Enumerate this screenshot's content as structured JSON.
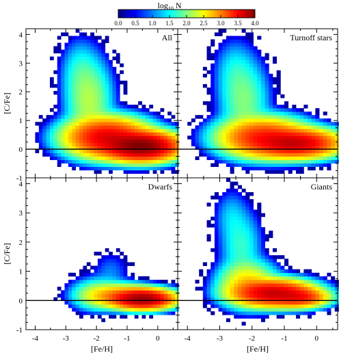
{
  "colorbar": {
    "label": "log",
    "label_sub": "10",
    "label_tail": " N",
    "ticks": [
      "0.0",
      "0.5",
      "1.0",
      "1.5",
      "2.0",
      "2.5",
      "3.0",
      "3.5",
      "4.0"
    ],
    "range": [
      0,
      4
    ],
    "colors": [
      "#00007f",
      "#0000ff",
      "#0080ff",
      "#00ffff",
      "#80ff80",
      "#ffff00",
      "#ff8000",
      "#ff0000",
      "#7f0000"
    ]
  },
  "chart_data": [
    {
      "type": "heatmap",
      "panel_label": "All",
      "xlabel": "",
      "ylabel": "[C/Fe]",
      "xlim": [
        -4.3,
        0.65
      ],
      "ylim": [
        -1,
        4.2
      ],
      "xticks": [
        "-4",
        "-3",
        "-2",
        "-1",
        "0"
      ],
      "yticks": [
        "-1",
        "0",
        "1",
        "2",
        "3",
        "4"
      ],
      "reference_line_y": 0,
      "value_label": "log10 N",
      "components": [
        {
          "x": -0.6,
          "y": 0.05,
          "sx": 0.55,
          "sy": 0.22,
          "peak": 4.0
        },
        {
          "x": -1.7,
          "y": 0.35,
          "sx": 0.6,
          "sy": 0.3,
          "peak": 3.6
        },
        {
          "x": -2.3,
          "y": 1.6,
          "sx": 0.35,
          "sy": 0.7,
          "peak": 2.2
        },
        {
          "x": -2.6,
          "y": 2.6,
          "sx": 0.3,
          "sy": 0.55,
          "peak": 1.6
        }
      ]
    },
    {
      "type": "heatmap",
      "panel_label": "Turnoff stars",
      "xlabel": "",
      "ylabel": "",
      "xlim": [
        -4.3,
        0.65
      ],
      "ylim": [
        -1,
        4.2
      ],
      "xticks": [
        "-4",
        "-3",
        "-2",
        "-1",
        "0"
      ],
      "yticks": [
        "-1",
        "0",
        "1",
        "2",
        "3",
        "4"
      ],
      "reference_line_y": 0,
      "value_label": "log10 N",
      "components": [
        {
          "x": -0.7,
          "y": 0.15,
          "sx": 0.6,
          "sy": 0.22,
          "peak": 3.7
        },
        {
          "x": -1.7,
          "y": 0.35,
          "sx": 0.6,
          "sy": 0.3,
          "peak": 3.4
        },
        {
          "x": -2.3,
          "y": 1.6,
          "sx": 0.35,
          "sy": 0.7,
          "peak": 2.0
        },
        {
          "x": -2.6,
          "y": 2.6,
          "sx": 0.3,
          "sy": 0.55,
          "peak": 1.5
        }
      ]
    },
    {
      "type": "heatmap",
      "panel_label": "Dwarfs",
      "xlabel": "[Fe/H]",
      "ylabel": "[C/Fe]",
      "xlim": [
        -4.3,
        0.65
      ],
      "ylim": [
        -1,
        4.2
      ],
      "xticks": [
        "-4",
        "-3",
        "-2",
        "-1",
        "0"
      ],
      "yticks": [
        "-1",
        "0",
        "1",
        "2",
        "3",
        "4"
      ],
      "reference_line_y": 0,
      "value_label": "log10 N",
      "components": [
        {
          "x": -0.55,
          "y": 0.0,
          "sx": 0.45,
          "sy": 0.15,
          "peak": 3.9
        },
        {
          "x": -1.3,
          "y": 0.1,
          "sx": 0.5,
          "sy": 0.18,
          "peak": 3.0
        },
        {
          "x": -2.0,
          "y": 0.15,
          "sx": 0.4,
          "sy": 0.25,
          "peak": 2.2
        },
        {
          "x": -1.6,
          "y": 0.9,
          "sx": 0.3,
          "sy": 0.35,
          "peak": 1.0
        }
      ]
    },
    {
      "type": "heatmap",
      "panel_label": "Giants",
      "xlabel": "[Fe/H]",
      "ylabel": "",
      "xlim": [
        -4.3,
        0.65
      ],
      "ylim": [
        -1,
        4.2
      ],
      "xticks": [
        "-4",
        "-3",
        "-2",
        "-1",
        "0"
      ],
      "yticks": [
        "-1",
        "0",
        "1",
        "2",
        "3",
        "4"
      ],
      "reference_line_y": 0,
      "value_label": "log10 N",
      "components": [
        {
          "x": -1.4,
          "y": 0.2,
          "sx": 0.55,
          "sy": 0.2,
          "peak": 3.7
        },
        {
          "x": -0.6,
          "y": 0.05,
          "sx": 0.4,
          "sy": 0.15,
          "peak": 3.4
        },
        {
          "x": -2.2,
          "y": 0.5,
          "sx": 0.4,
          "sy": 0.35,
          "peak": 2.7
        },
        {
          "x": -2.4,
          "y": 1.8,
          "sx": 0.3,
          "sy": 0.6,
          "peak": 1.7
        },
        {
          "x": -2.7,
          "y": 2.8,
          "sx": 0.25,
          "sy": 0.45,
          "peak": 1.3
        }
      ]
    }
  ]
}
